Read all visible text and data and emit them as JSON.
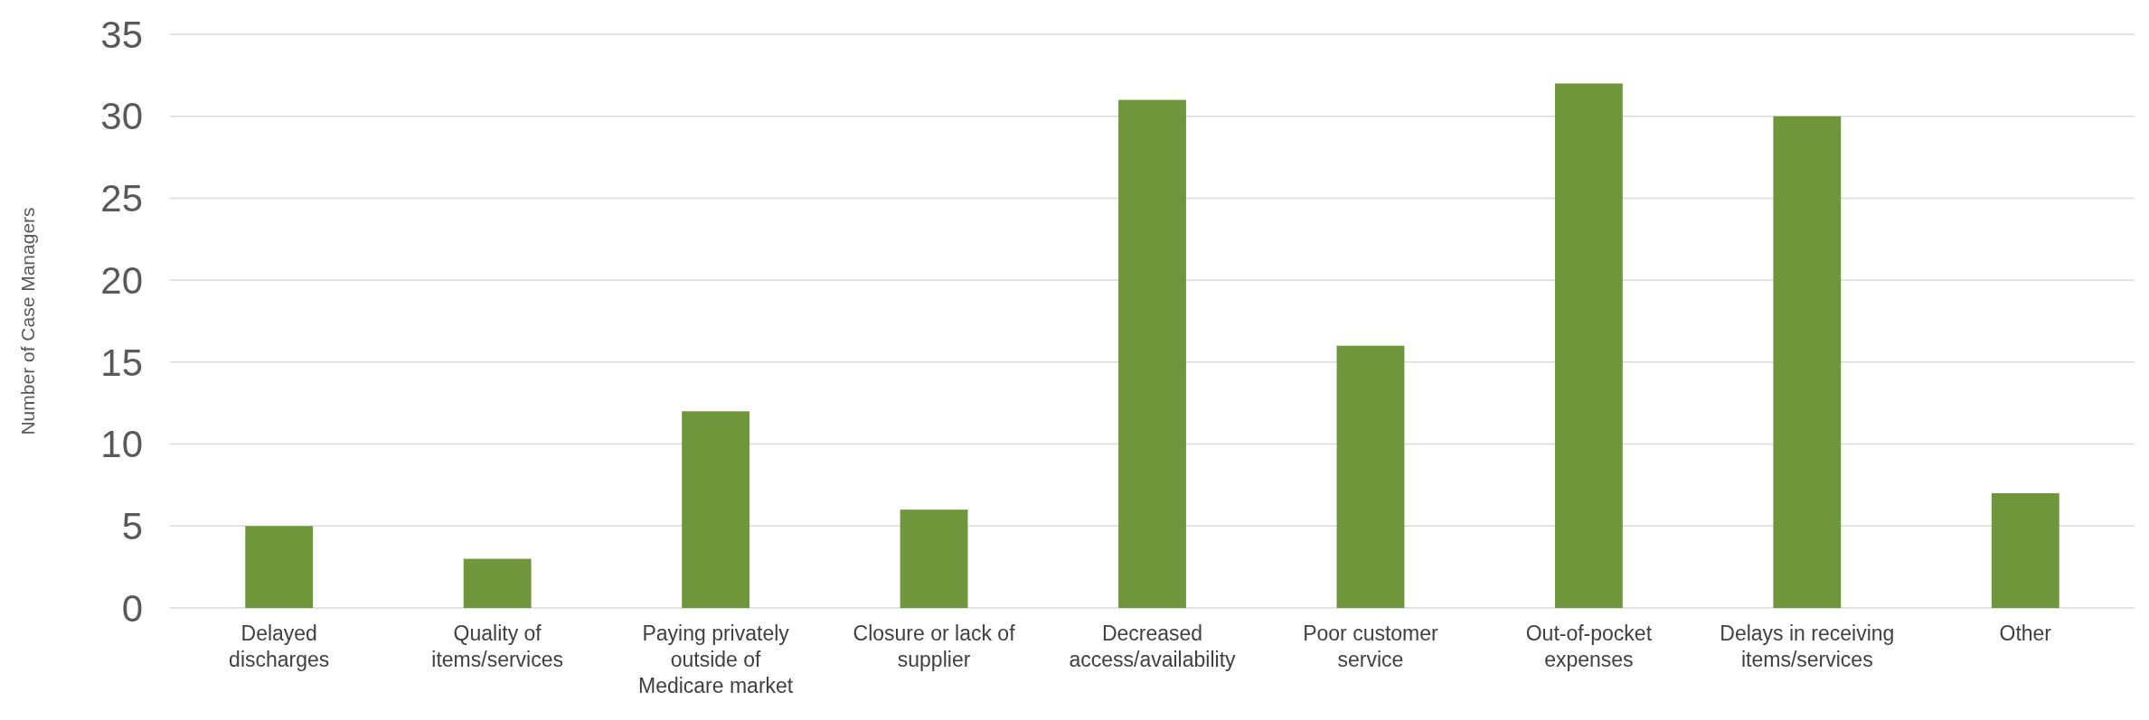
{
  "chart_data": {
    "type": "bar",
    "ylabel": "Number of Case Managers",
    "categories": [
      "Delayed discharges",
      "Quality of items/services",
      "Paying privately outside of Medicare market",
      "Closure or lack of supplier",
      "Decreased access/availability",
      "Poor customer service",
      "Out-of-pocket expenses",
      "Delays in receiving items/services",
      "Other"
    ],
    "values": [
      5,
      3,
      12,
      6,
      31,
      16,
      32,
      30,
      7
    ],
    "color": "#70963c",
    "ylim": [
      0,
      35
    ],
    "yticks": [
      0,
      5,
      10,
      15,
      20,
      25,
      30,
      35
    ],
    "grid": "y"
  }
}
